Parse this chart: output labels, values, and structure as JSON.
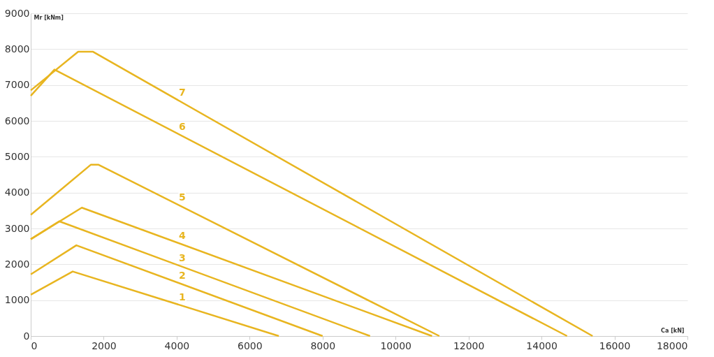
{
  "chart_data": {
    "type": "line",
    "xlabel": "Ca [kN]",
    "ylabel": "Mr [kNm]",
    "xlim": [
      0,
      18000
    ],
    "xticks": [
      0,
      2000,
      4000,
      6000,
      8000,
      10000,
      12000,
      14000,
      16000,
      18000
    ],
    "ylim": [
      0,
      9000
    ],
    "yticks": [
      0,
      1000,
      2000,
      3000,
      4000,
      5000,
      6000,
      7000,
      8000,
      9000
    ],
    "grid": "y",
    "legend": false,
    "line_style": "solid",
    "marker": "none",
    "series": [
      {
        "name": "1",
        "color": "#e8b520",
        "x": [
          0,
          1150,
          6800
        ],
        "values": [
          1150,
          1800,
          0
        ]
      },
      {
        "name": "2",
        "color": "#e8b520",
        "x": [
          0,
          1250,
          8000
        ],
        "values": [
          1720,
          2530,
          0
        ]
      },
      {
        "name": "3",
        "color": "#e8b520",
        "x": [
          0,
          780,
          9300
        ],
        "values": [
          2700,
          3200,
          0
        ]
      },
      {
        "name": "4",
        "color": "#e8b520",
        "x": [
          0,
          1400,
          11000
        ],
        "values": [
          2700,
          3580,
          0
        ]
      },
      {
        "name": "5",
        "color": "#e8b520",
        "x": [
          0,
          1650,
          1850,
          11200
        ],
        "values": [
          3380,
          4780,
          4780,
          0
        ]
      },
      {
        "name": "6",
        "color": "#e8b520",
        "x": [
          0,
          650,
          14700
        ],
        "values": [
          6700,
          7430,
          0
        ]
      },
      {
        "name": "7",
        "color": "#e8b520",
        "x": [
          0,
          1300,
          1700,
          15400
        ],
        "values": [
          6850,
          7930,
          7930,
          0
        ]
      }
    ]
  }
}
